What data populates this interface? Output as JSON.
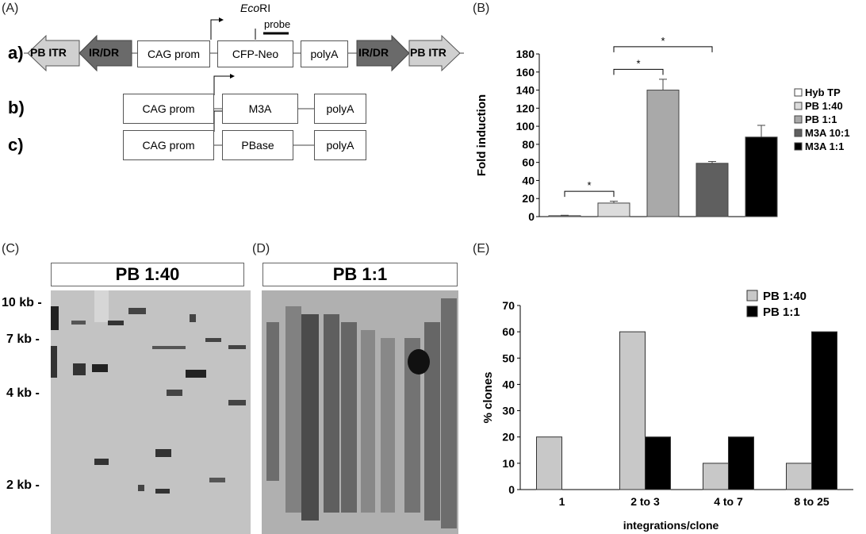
{
  "panels": {
    "A": "(A)",
    "B": "(B)",
    "C": "(C)",
    "D": "(D)",
    "E": "(E)"
  },
  "constructs": {
    "row_a": "a)",
    "row_b": "b)",
    "row_c": "c)",
    "pb_itr": "PB ITR",
    "ir_dr": "IR/DR",
    "cag_prom": "CAG prom",
    "cfp_neo": "CFP-Neo",
    "polya": "polyA",
    "m3a": "M3A",
    "pbase": "PBase",
    "ecori_italic": "Eco",
    "ecori_rest": "RI",
    "probe": "probe"
  },
  "gels": {
    "c_title": "PB 1:40",
    "d_title": "PB 1:1",
    "markers": [
      "10 kb -",
      "7 kb -",
      "4 kb -",
      "2 kb -"
    ]
  },
  "chart_data": [
    {
      "type": "bar",
      "panel": "B",
      "categories": [
        "Hyb TP",
        "PB 1:40",
        "PB 1:1",
        "M3A 10:1",
        "M3A 1:1"
      ],
      "values": [
        1,
        15,
        140,
        59,
        88
      ],
      "errors": [
        0.5,
        2,
        12,
        2,
        13
      ],
      "colors": [
        "#ffffff",
        "#dcdcdc",
        "#a9a9a9",
        "#5f5f5f",
        "#000000"
      ],
      "ylabel": "Fold induction",
      "ylim": [
        0,
        180
      ],
      "yticks": [
        0,
        20,
        40,
        60,
        80,
        100,
        120,
        140,
        160,
        180
      ],
      "legend": [
        "Hyb TP",
        "PB 1:40",
        "PB 1:1",
        "M3A 10:1",
        "M3A 1:1"
      ],
      "legend_position": "right",
      "significance": [
        {
          "from": "Hyb TP",
          "to": "PB 1:40",
          "label": "*"
        },
        {
          "from": "PB 1:40",
          "to": "PB 1:1",
          "label": "*"
        },
        {
          "from": "PB 1:40",
          "to": "M3A 10:1",
          "label": "*"
        }
      ]
    },
    {
      "type": "bar",
      "panel": "E",
      "categories": [
        "1",
        "2 to 3",
        "4 to 7",
        "8 to 25"
      ],
      "series": [
        {
          "name": "PB 1:40",
          "values": [
            20,
            60,
            10,
            10
          ],
          "color": "#c8c8c8"
        },
        {
          "name": "PB 1:1",
          "values": [
            0,
            20,
            20,
            60
          ],
          "color": "#000000"
        }
      ],
      "xlabel": "integrations/clone",
      "ylabel": "% clones",
      "ylim": [
        0,
        70
      ],
      "yticks": [
        0,
        10,
        20,
        30,
        40,
        50,
        60,
        70
      ],
      "legend_position": "top-right"
    }
  ]
}
